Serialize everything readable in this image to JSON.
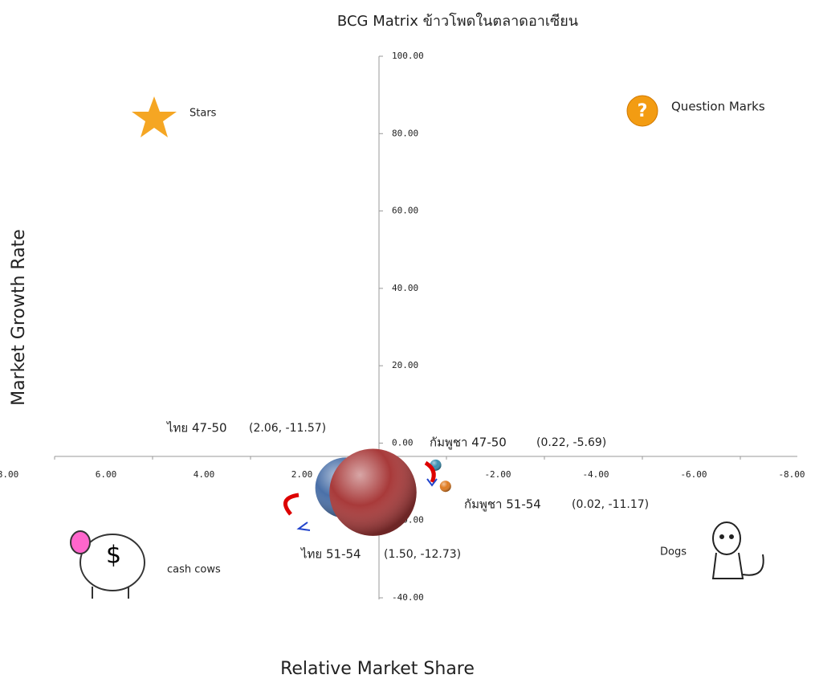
{
  "chart_data": {
    "type": "bubble",
    "title": "BCG Matrix ข้าวโพดในตลาดอาเซียน",
    "x_label": "Relative Market Share",
    "y_label": "Market Growth Rate",
    "quadrants": [
      "Stars",
      "Question Marks",
      "cash cows",
      "Dogs"
    ],
    "xlim": [
      8,
      -8
    ],
    "ylim": [
      -40,
      100
    ],
    "xticks": [
      {
        "value": 8,
        "label": "8.00"
      },
      {
        "value": 6,
        "label": "6.00"
      },
      {
        "value": 4,
        "label": "4.00"
      },
      {
        "value": 2,
        "label": "2.00"
      },
      {
        "value": 0,
        "label": "0.00"
      },
      {
        "value": -2,
        "label": "-2.00"
      },
      {
        "value": -4,
        "label": "-4.00"
      },
      {
        "value": -6,
        "label": "-6.00"
      },
      {
        "value": -8,
        "label": "-8.00"
      }
    ],
    "yticks": [
      {
        "value": 100,
        "label": "100.00"
      },
      {
        "value": 80,
        "label": "80.00"
      },
      {
        "value": 60,
        "label": "60.00"
      },
      {
        "value": 40,
        "label": "40.00"
      },
      {
        "value": 20,
        "label": "20.00"
      },
      {
        "value": 0,
        "label": "0.00"
      },
      {
        "value": -20,
        "label": "-20.00"
      },
      {
        "value": -40,
        "label": "-40.00"
      }
    ],
    "grid": false,
    "series": [
      {
        "name": "ไทย 47-50",
        "color": "#4a70a8",
        "x": [
          2.06
        ],
        "values": [
          -11.57
        ],
        "sizes": [
          29
        ],
        "value_labels": [
          "(2.06, -11.57)"
        ]
      },
      {
        "name": "ไทย 51-54",
        "color": "#a83a3a",
        "x": [
          1.5
        ],
        "values": [
          -12.73
        ],
        "sizes": [
          60
        ],
        "value_labels": [
          "(1.50, -12.73)"
        ]
      },
      {
        "name": "กัมพูชา 47-50",
        "color": "#3a8fb0",
        "x": [
          0.22
        ],
        "values": [
          -5.69
        ],
        "sizes": [
          1
        ],
        "value_labels": [
          "(0.22, -5.69)"
        ]
      },
      {
        "name": "กัมพูชา 51-54",
        "color": "#e07b20",
        "x": [
          0.02
        ],
        "values": [
          -11.17
        ],
        "sizes": [
          1
        ],
        "value_labels": [
          "(0.02, -11.17)"
        ]
      }
    ]
  }
}
